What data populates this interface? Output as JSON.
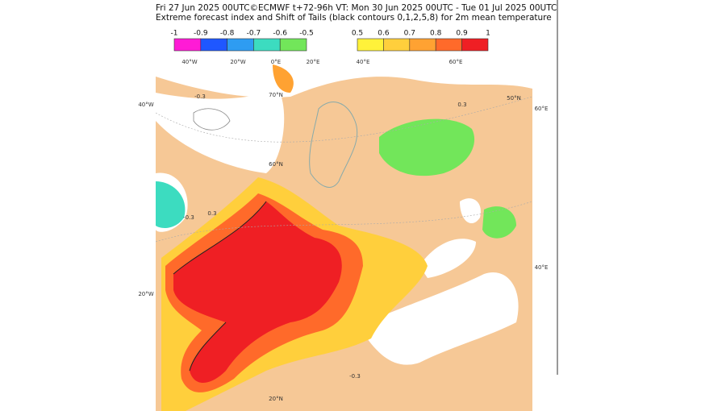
{
  "header": {
    "lines": [
      "Fri 27 Jun 2025 00UTC©ECMWF t+72-96h  VT: Mon 30 Jun 2025 00UTC - Tue 01 Jul 2025 00UTC",
      "Extreme forecast index and Shift of Tails (black contours 0,1,2,5,8) for 2m mean temperature"
    ]
  },
  "legend": {
    "negative": {
      "labels": [
        -1,
        -0.9,
        -0.8,
        -0.7,
        -0.6,
        -0.5
      ],
      "colors": [
        "#ff1bd6",
        "#1f57ff",
        "#2e9cf2",
        "#3cdcc0",
        "#72e65a"
      ]
    },
    "positive": {
      "labels": [
        0.5,
        0.6,
        0.7,
        0.8,
        0.9,
        1
      ],
      "colors": [
        "#fff23a",
        "#ffcf3c",
        "#ffa232",
        "#ff6a2a",
        "#ef1f24"
      ]
    }
  },
  "map": {
    "top_labels": [
      "40°W",
      "20°W",
      "0°E",
      "20°E",
      "40°E",
      "60°E"
    ],
    "left_labels": [
      "40°W",
      "20°W"
    ],
    "right_labels": [
      "60°E",
      "40°E"
    ],
    "lat_labels": [
      "70°N",
      "60°N",
      "50°N",
      "20°N"
    ],
    "contour_labels": [
      "-0.3",
      "0.3",
      "-0.3",
      "0.3",
      "-0.3"
    ]
  }
}
